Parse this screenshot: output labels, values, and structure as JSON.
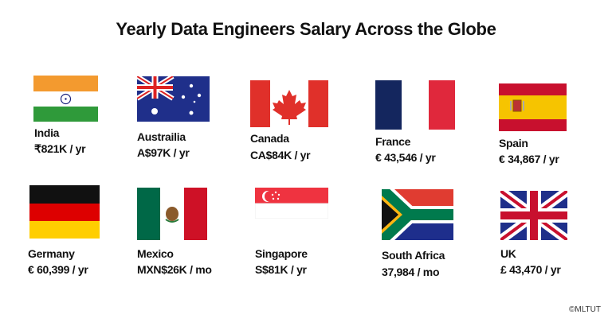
{
  "title": "Yearly Data Engineers Salary Across the Globe",
  "countries": [
    {
      "name": "India",
      "salary": "₹821K / yr",
      "flag_icon": "india-flag-icon"
    },
    {
      "name": "Austrailia",
      "salary": "A$97K / yr",
      "flag_icon": "australia-flag-icon"
    },
    {
      "name": "Canada",
      "salary": "CA$84K / yr",
      "flag_icon": "canada-flag-icon"
    },
    {
      "name": "France",
      "salary": "€ 43,546 / yr",
      "flag_icon": "france-flag-icon"
    },
    {
      "name": "Spain",
      "salary": "€ 34,867 / yr",
      "flag_icon": "spain-flag-icon"
    },
    {
      "name": "Germany",
      "salary": "€ 60,399 / yr",
      "flag_icon": "germany-flag-icon"
    },
    {
      "name": "Mexico",
      "salary": "MXN$26K / mo",
      "flag_icon": "mexico-flag-icon"
    },
    {
      "name": "Singapore",
      "salary": "S$81K / yr",
      "flag_icon": "singapore-flag-icon"
    },
    {
      "name": "South Africa",
      "salary": "37,984 / mo",
      "flag_icon": "south-africa-flag-icon"
    },
    {
      "name": "UK",
      "salary": "£ 43,470 / yr",
      "flag_icon": "uk-flag-icon"
    }
  ],
  "copyright": "©MLTUT"
}
